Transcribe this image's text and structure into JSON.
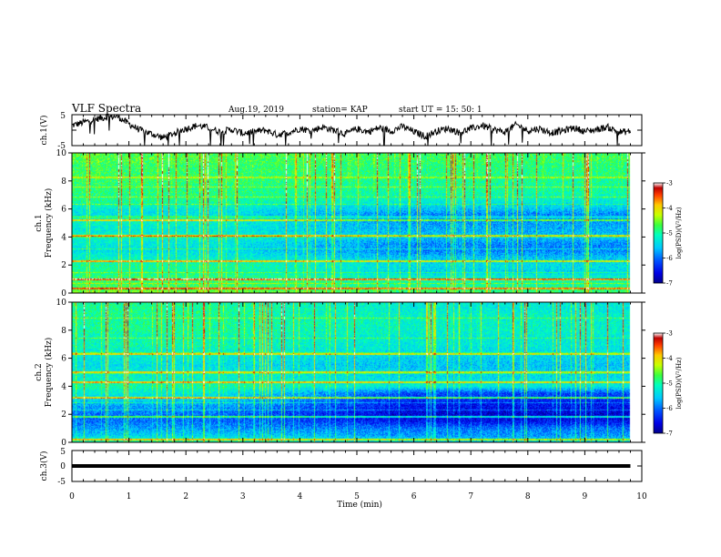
{
  "header": {
    "title": "VLF Spectra",
    "date": "Aug.19, 2019",
    "station": "station= KAP",
    "start": "start UT = 15: 50: 1"
  },
  "colors": {
    "ch1_trace": "#000000",
    "ch3_trace": "#000000",
    "colormap": [
      "#0000b4",
      "#0032ff",
      "#00b4ff",
      "#00ffc8",
      "#32ff32",
      "#c8ff00",
      "#ffc800",
      "#ff3200",
      "#b40000",
      "#ffffff"
    ]
  },
  "chart_data": [
    {
      "type": "line",
      "panel": "ch1",
      "ylabel": "ch.1(V)",
      "ylim": [
        -5,
        5
      ],
      "ytick_labels": [
        "5",
        "-5"
      ],
      "xlim": [
        0,
        10
      ],
      "series": [
        {
          "x": [
            0,
            0.2,
            0.4,
            0.6,
            0.8,
            1.0,
            1.2,
            1.4,
            1.6,
            1.8,
            2.0,
            2.2,
            2.4,
            2.6,
            2.8,
            3.0,
            3.2,
            3.4,
            3.6,
            3.8,
            4.0,
            4.2,
            4.4,
            4.6,
            4.8,
            5.0,
            5.2,
            5.4,
            5.6,
            5.8,
            6.0,
            6.2,
            6.4,
            6.6,
            6.8,
            7.0,
            7.2,
            7.4,
            7.6,
            7.8,
            8.0,
            8.2,
            8.4,
            8.6,
            8.8,
            9.0,
            9.2,
            9.4,
            9.6,
            9.8
          ],
          "values": [
            1.5,
            2.5,
            3.5,
            4.2,
            4.5,
            2.0,
            0.0,
            -1.2,
            -2.5,
            -1.0,
            0.5,
            1.5,
            0.8,
            -0.5,
            0.2,
            -1.0,
            -0.5,
            0.0,
            -1.5,
            -0.8,
            0.5,
            -0.2,
            1.0,
            0.0,
            -1.2,
            0.4,
            -0.5,
            0.8,
            -0.3,
            1.2,
            -0.5,
            -2.0,
            -0.3,
            0.6,
            -0.8,
            0.5,
            1.5,
            0.2,
            -0.6,
            1.8,
            -0.2,
            0.5,
            -0.8,
            -0.3,
            0.8,
            -0.4,
            0.2,
            1.0,
            -0.6,
            -0.4
          ]
        }
      ]
    },
    {
      "type": "heatmap",
      "panel": "ch1",
      "ylabel": "ch.1\nFrequency (kHz)",
      "ylim": [
        0,
        10
      ],
      "yticks": [
        0,
        2,
        4,
        6,
        8,
        10
      ],
      "xlim": [
        0,
        10
      ],
      "colorbar": {
        "range": [
          -7,
          -3
        ],
        "ticks": [
          "-3",
          "-4",
          "-5",
          "-6",
          "-7"
        ],
        "label": "log(PSD)(V²/Hz)"
      },
      "level_profile": {
        "freq_khz": [
          0.0,
          0.5,
          1.0,
          1.5,
          2.0,
          2.5,
          3.0,
          3.5,
          4.0,
          4.5,
          5.0,
          5.5,
          6.0,
          6.5,
          7.0,
          7.5,
          8.0,
          8.5,
          9.0,
          9.5,
          10.0
        ],
        "log_psd_early": [
          -4.5,
          -4.8,
          -4.8,
          -5.0,
          -5.0,
          -5.2,
          -5.4,
          -5.3,
          -5.2,
          -5.3,
          -5.2,
          -5.4,
          -5.3,
          -5.0,
          -4.9,
          -4.9,
          -4.8,
          -4.8,
          -4.8,
          -4.7,
          -4.7
        ],
        "log_psd_late": [
          -4.8,
          -5.0,
          -5.1,
          -5.5,
          -5.4,
          -5.6,
          -5.9,
          -5.9,
          -5.6,
          -5.7,
          -5.8,
          -6.0,
          -5.6,
          -5.3,
          -5.1,
          -5.0,
          -5.0,
          -4.9,
          -4.9,
          -4.8,
          -4.8
        ]
      },
      "bands_khz": [
        5.2,
        4.1,
        2.3,
        1.0,
        0.3
      ]
    },
    {
      "type": "heatmap",
      "panel": "ch2",
      "ylabel": "ch.2\nFrequency (kHz)",
      "ylim": [
        0,
        10
      ],
      "yticks": [
        0,
        2,
        4,
        6,
        8,
        10
      ],
      "xlim": [
        0,
        10
      ],
      "colorbar": {
        "range": [
          -7,
          -3
        ],
        "ticks": [
          "-3",
          "-4",
          "-5",
          "-6",
          "-7"
        ],
        "label": "log(PSD)(V²/Hz)"
      },
      "level_profile": {
        "freq_khz": [
          0.0,
          0.5,
          1.0,
          1.5,
          2.0,
          2.5,
          3.0,
          3.5,
          4.0,
          4.5,
          5.0,
          5.5,
          6.0,
          6.5,
          7.0,
          7.5,
          8.0,
          8.5,
          9.0,
          9.5,
          10.0
        ],
        "log_psd_early": [
          -5.0,
          -5.5,
          -5.8,
          -6.0,
          -6.0,
          -5.8,
          -5.5,
          -5.3,
          -5.0,
          -5.2,
          -5.3,
          -5.4,
          -5.3,
          -5.2,
          -5.1,
          -5.1,
          -5.0,
          -5.0,
          -5.0,
          -5.0,
          -5.0
        ],
        "log_psd_late": [
          -5.4,
          -5.8,
          -6.0,
          -6.5,
          -6.7,
          -6.5,
          -6.4,
          -6.2,
          -5.3,
          -5.4,
          -5.5,
          -5.6,
          -5.5,
          -5.4,
          -5.3,
          -5.3,
          -5.2,
          -5.2,
          -5.2,
          -5.3,
          -5.3
        ]
      },
      "bands_khz": [
        6.3,
        5.0,
        4.3,
        3.2,
        1.8,
        0.2
      ]
    },
    {
      "type": "line",
      "panel": "ch3",
      "ylabel": "ch.3(V)",
      "ylim": [
        -5,
        5
      ],
      "ytick_labels": [
        "5",
        "0",
        "-5"
      ],
      "xlim": [
        0,
        10
      ],
      "series": [
        {
          "x": [
            0,
            9.8
          ],
          "values": [
            0,
            0
          ]
        }
      ]
    },
    {
      "type": "axis",
      "xlabel": "Time (min)",
      "xticks": [
        0,
        1,
        2,
        3,
        4,
        5,
        6,
        7,
        8,
        9,
        10
      ],
      "xtick_labels": [
        "0",
        "1",
        "2",
        "3",
        "4",
        "5",
        "6",
        "7",
        "8",
        "9",
        "10"
      ]
    }
  ]
}
